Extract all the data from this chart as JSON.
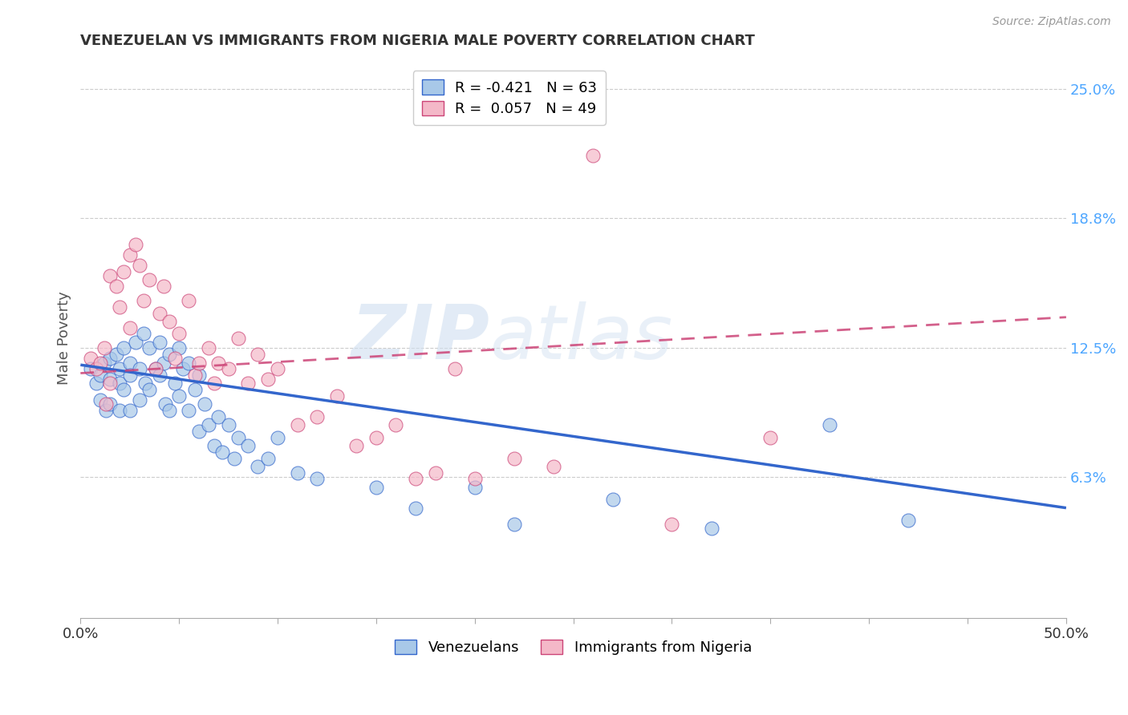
{
  "title": "VENEZUELAN VS IMMIGRANTS FROM NIGERIA MALE POVERTY CORRELATION CHART",
  "source": "Source: ZipAtlas.com",
  "ylabel": "Male Poverty",
  "right_yticks": [
    "25.0%",
    "18.8%",
    "12.5%",
    "6.3%"
  ],
  "right_ytick_vals": [
    0.25,
    0.188,
    0.125,
    0.063
  ],
  "xlim": [
    0.0,
    0.5
  ],
  "ylim": [
    -0.005,
    0.265
  ],
  "venezuelan_color": "#a8c8e8",
  "nigeria_color": "#f4b8c8",
  "venezuelan_R": -0.421,
  "venezuelan_N": 63,
  "nigeria_R": 0.057,
  "nigeria_N": 49,
  "venezuelan_scatter_x": [
    0.005,
    0.008,
    0.01,
    0.01,
    0.012,
    0.013,
    0.015,
    0.015,
    0.015,
    0.018,
    0.02,
    0.02,
    0.02,
    0.022,
    0.022,
    0.025,
    0.025,
    0.025,
    0.028,
    0.03,
    0.03,
    0.032,
    0.033,
    0.035,
    0.035,
    0.038,
    0.04,
    0.04,
    0.042,
    0.043,
    0.045,
    0.045,
    0.048,
    0.05,
    0.05,
    0.052,
    0.055,
    0.055,
    0.058,
    0.06,
    0.06,
    0.063,
    0.065,
    0.068,
    0.07,
    0.072,
    0.075,
    0.078,
    0.08,
    0.085,
    0.09,
    0.095,
    0.1,
    0.11,
    0.12,
    0.15,
    0.17,
    0.2,
    0.22,
    0.27,
    0.32,
    0.38,
    0.42
  ],
  "venezuelan_scatter_y": [
    0.115,
    0.108,
    0.112,
    0.1,
    0.118,
    0.095,
    0.12,
    0.11,
    0.098,
    0.122,
    0.115,
    0.108,
    0.095,
    0.125,
    0.105,
    0.118,
    0.112,
    0.095,
    0.128,
    0.115,
    0.1,
    0.132,
    0.108,
    0.125,
    0.105,
    0.115,
    0.128,
    0.112,
    0.118,
    0.098,
    0.122,
    0.095,
    0.108,
    0.125,
    0.102,
    0.115,
    0.118,
    0.095,
    0.105,
    0.112,
    0.085,
    0.098,
    0.088,
    0.078,
    0.092,
    0.075,
    0.088,
    0.072,
    0.082,
    0.078,
    0.068,
    0.072,
    0.082,
    0.065,
    0.062,
    0.058,
    0.048,
    0.058,
    0.04,
    0.052,
    0.038,
    0.088,
    0.042
  ],
  "nigeria_scatter_x": [
    0.005,
    0.008,
    0.01,
    0.012,
    0.013,
    0.015,
    0.015,
    0.018,
    0.02,
    0.022,
    0.025,
    0.025,
    0.028,
    0.03,
    0.032,
    0.035,
    0.038,
    0.04,
    0.042,
    0.045,
    0.048,
    0.05,
    0.055,
    0.058,
    0.06,
    0.065,
    0.068,
    0.07,
    0.075,
    0.08,
    0.085,
    0.09,
    0.095,
    0.1,
    0.11,
    0.12,
    0.13,
    0.14,
    0.15,
    0.16,
    0.17,
    0.18,
    0.19,
    0.2,
    0.22,
    0.24,
    0.26,
    0.3,
    0.35
  ],
  "nigeria_scatter_y": [
    0.12,
    0.115,
    0.118,
    0.125,
    0.098,
    0.16,
    0.108,
    0.155,
    0.145,
    0.162,
    0.17,
    0.135,
    0.175,
    0.165,
    0.148,
    0.158,
    0.115,
    0.142,
    0.155,
    0.138,
    0.12,
    0.132,
    0.148,
    0.112,
    0.118,
    0.125,
    0.108,
    0.118,
    0.115,
    0.13,
    0.108,
    0.122,
    0.11,
    0.115,
    0.088,
    0.092,
    0.102,
    0.078,
    0.082,
    0.088,
    0.062,
    0.065,
    0.115,
    0.062,
    0.072,
    0.068,
    0.218,
    0.04,
    0.082
  ],
  "watermark_zip": "ZIP",
  "watermark_atlas": "atlas",
  "background_color": "#ffffff",
  "grid_color": "#cccccc",
  "title_color": "#333333",
  "axis_label_color": "#555555",
  "right_tick_color": "#4da6ff",
  "trendline_venezuelan_color": "#3366cc",
  "trendline_nigeria_color": "#cc4477",
  "venezuelan_trend_x0": 0.0,
  "venezuelan_trend_y0": 0.117,
  "venezuelan_trend_x1": 0.5,
  "venezuelan_trend_y1": 0.048,
  "nigeria_trend_x0": 0.0,
  "nigeria_trend_y0": 0.113,
  "nigeria_trend_x1": 0.5,
  "nigeria_trend_y1": 0.14
}
